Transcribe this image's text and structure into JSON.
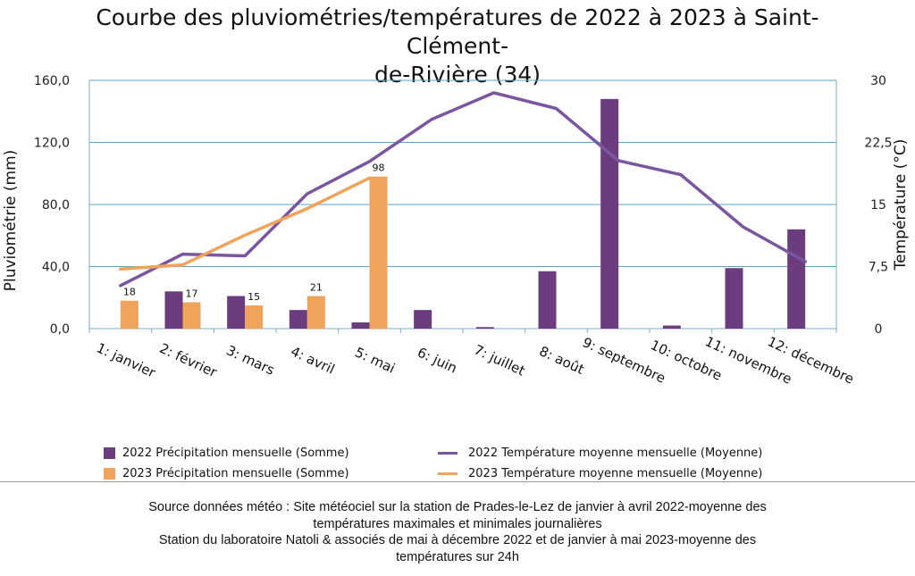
{
  "chart_data": {
    "type": "bar",
    "title": "Courbe des pluviométries/températures de 2022 à 2023 à Saint-Clément-de-Rivière (34)",
    "title_lines": [
      "Courbe des pluviométries/températures de 2022 à 2023 à Saint-Clément-",
      "de-Rivière (34)"
    ],
    "categories": [
      "1: janvier",
      "2: février",
      "3: mars",
      "4: avril",
      "5: mai",
      "6: juin",
      "7: juillet",
      "8: août",
      "9: septembre",
      "10: octobre",
      "11: novembre",
      "12: décembre"
    ],
    "ylabel": "Pluviométrie (mm)",
    "y2label": "Température (°C)",
    "ylim": [
      0,
      160
    ],
    "y2lim": [
      0,
      30
    ],
    "yticks": [
      "0,0",
      "40,0",
      "80,0",
      "120,0",
      "160,0"
    ],
    "y2ticks": [
      "0",
      "7,5",
      "15",
      "22,5",
      "30"
    ],
    "grid": true,
    "legend_position": "bottom",
    "series": [
      {
        "name": "2022 Précipitation mensuelle (Somme)",
        "kind": "bar",
        "axis": "left",
        "color": "#6b3d7f",
        "values": [
          0,
          24,
          21,
          12,
          4,
          12,
          1,
          37,
          148,
          2,
          39,
          64
        ]
      },
      {
        "name": "2023 Précipitation mensuelle (Somme)",
        "kind": "bar",
        "axis": "left",
        "color": "#f0a35a",
        "values": [
          18,
          17,
          15,
          21,
          98,
          null,
          null,
          null,
          null,
          null,
          null,
          null
        ],
        "labels": [
          "18",
          "17",
          "15",
          "21",
          "98"
        ]
      },
      {
        "name": "2022 Température moyenne mensuelle (Moyenne)",
        "kind": "line",
        "axis": "right",
        "color": "#7a55a0",
        "values": [
          5.2,
          9.0,
          8.8,
          16.3,
          20.2,
          25.3,
          28.5,
          26.6,
          20.3,
          18.6,
          12.3,
          8.1
        ]
      },
      {
        "name": "2023 Température moyenne mensuelle (Moyenne)",
        "kind": "line",
        "axis": "right",
        "color": "#f0a35a",
        "values": [
          7.2,
          7.7,
          11.3,
          14.5,
          18.2,
          null,
          null,
          null,
          null,
          null,
          null,
          null
        ]
      }
    ]
  },
  "source": {
    "lines": [
      "Source données météo : Site météociel sur la station de Prades-le-Lez de janvier à avril 2022-moyenne des",
      "températures maximales et minimales journalières",
      "Station du laboratoire Natoli & associés  de mai à décembre 2022 et de janvier à mai 2023-moyenne des",
      "températures sur 24h"
    ]
  }
}
